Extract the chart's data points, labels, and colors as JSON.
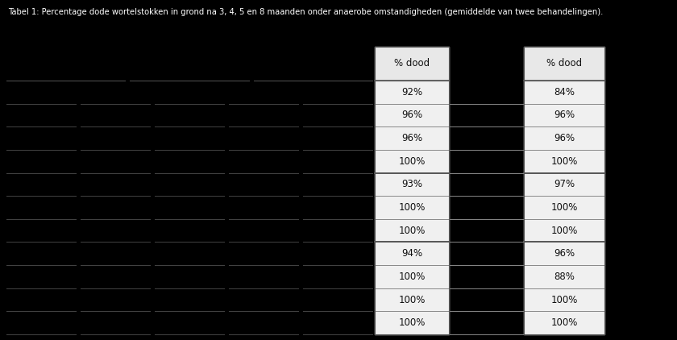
{
  "title": "Tabel 1: Percentage dode wortelstokken in grond na 3, 4, 5 en 8 maanden onder anaerobe omstandigheden (gemiddelde van twee behandelingen).",
  "col_header_left": "% dood",
  "col_header_right": "% dood",
  "left_values": [
    "92%",
    "96%",
    "96%",
    "100%",
    "93%",
    "100%",
    "100%",
    "94%",
    "100%",
    "100%",
    "100%"
  ],
  "right_values": [
    "84%",
    "96%",
    "96%",
    "100%",
    "97%",
    "100%",
    "100%",
    "96%",
    "88%",
    "100%",
    "100%"
  ],
  "group_sizes": [
    4,
    3,
    4
  ],
  "bg_color": "#000000",
  "cell_bg_color": "#f0f0f0",
  "header_bg": "#e8e8e8",
  "border_color": "#888888",
  "thick_border_color": "#555555",
  "text_color_white": "#ffffff",
  "text_color_black": "#111111",
  "fig_width": 8.4,
  "fig_height": 4.22
}
